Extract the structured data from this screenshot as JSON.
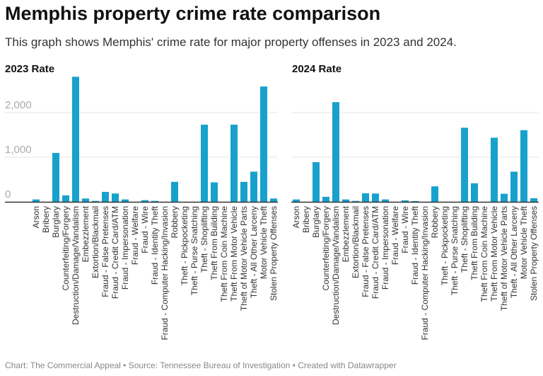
{
  "title": "Memphis property crime rate comparison",
  "subtitle": "This graph shows Memphis' crime rate for major property offenses in 2023 and 2024.",
  "footer": "Chart: The Commercial Appeal • Source: Tennessee Bureau of Investigation • Created with Datawrapper",
  "colors": {
    "bar": "#18a1cd",
    "grid": "#e6e6e6",
    "axis": "#333333"
  },
  "chart_data": [
    {
      "type": "bar",
      "title": "2023 Rate",
      "ylim": [
        0,
        2800
      ],
      "yticks": [
        0,
        1000,
        2000
      ],
      "ytick_labels": [
        "0",
        "1,000",
        "2,000"
      ],
      "grid": true,
      "categories": [
        "Arson",
        "Bribery",
        "Burglary",
        "Counterfeiting/Forgery",
        "Destruction/Damage/Vandalism",
        "Embezzlement",
        "Extortion/Blackmail",
        "Fraud - False Pretenses",
        "Fraud - Credit Card/ATM",
        "Fraud - Impersonation",
        "Fraud - Welfare",
        "Fraud - Wire",
        "Fraud - Identity Theft",
        "Fraud - Computer Hacking/Invasion",
        "Robbery",
        "Theft - Pickpocketing",
        "Theft - Purse Snatching",
        "Theft - Shoplifting",
        "Theft From Building",
        "Theft From Coin Machine",
        "Theft From Motor Vehicle",
        "Theft of Motor Vehicle Parts",
        "Theft - All Other Larceny",
        "Motor Vehicle Theft",
        "Stolen Property Offenses"
      ],
      "values": [
        53,
        0,
        1096,
        144,
        2803,
        74,
        21,
        223,
        186,
        53,
        0,
        37,
        21,
        0,
        447,
        0,
        0,
        1729,
        436,
        0,
        1729,
        447,
        676,
        2585,
        74
      ]
    },
    {
      "type": "bar",
      "title": "2024 Rate",
      "ylim": [
        0,
        2800
      ],
      "yticks": [
        0,
        1000,
        2000
      ],
      "grid": true,
      "categories": [
        "Arson",
        "Bribery",
        "Burglary",
        "Counterfeiting/Forgery",
        "Destruction/Damage/Vandalism",
        "Embezzlement",
        "Extortion/Blackmail",
        "Fraud - False Pretenses",
        "Fraud - Credit Card/ATM",
        "Fraud - Impersonation",
        "Fraud - Welfare",
        "Fraud - Wire",
        "Fraud - Identity Theft",
        "Fraud - Computer Hacking/Invasion",
        "Robbery",
        "Theft - Pickpocketing",
        "Theft - Purse Snatching",
        "Theft - Shoplifting",
        "Theft From Building",
        "Theft From Coin Machine",
        "Theft From Motor Vehicle",
        "Theft of Motor Vehicle Parts",
        "Theft - All Other Larceny",
        "Motor Vehicle Theft",
        "Stolen Property Offenses"
      ],
      "values": [
        53,
        0,
        888,
        112,
        2234,
        53,
        21,
        191,
        186,
        53,
        0,
        32,
        16,
        0,
        346,
        0,
        0,
        1660,
        415,
        0,
        1436,
        181,
        676,
        1606,
        80
      ]
    }
  ]
}
